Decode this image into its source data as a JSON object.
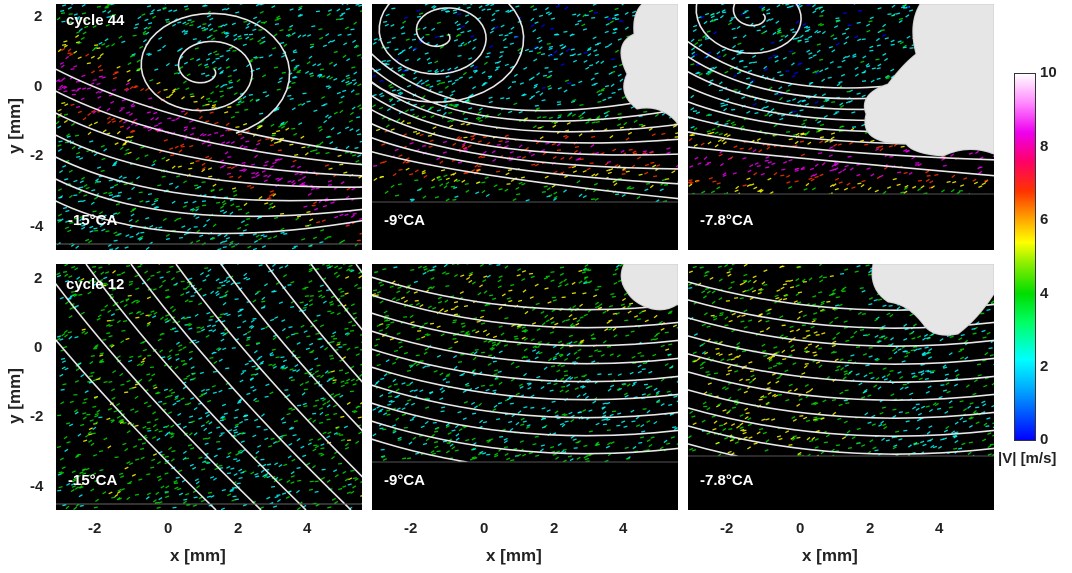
{
  "chart_data": {
    "type": "vector-field",
    "rows": [
      {
        "label": "cycle 44",
        "panels": [
          "-15°CA",
          "-9°CA",
          "-7.8°CA"
        ]
      },
      {
        "label": "cycle 12",
        "panels": [
          "-15°CA",
          "-9°CA",
          "-7.8°CA"
        ]
      }
    ],
    "xlabel": "x [mm]",
    "ylabel": "y [mm]",
    "xticks": [
      "-2",
      "0",
      "2",
      "4"
    ],
    "yticks": [
      "2",
      "0",
      "-2",
      "-4"
    ],
    "xlim": [
      -3.2,
      5.5
    ],
    "ylim": [
      -4.7,
      2.4
    ],
    "colorbar": {
      "label": "|V| [m/s]",
      "ticks": [
        "10",
        "8",
        "6",
        "4",
        "2",
        "0"
      ],
      "range": [
        0,
        10
      ],
      "colors": [
        "#0000ff",
        "#00ffff",
        "#00dd00",
        "#ffff00",
        "#ff3300",
        "#ee00ee",
        "#ffffff"
      ]
    }
  }
}
